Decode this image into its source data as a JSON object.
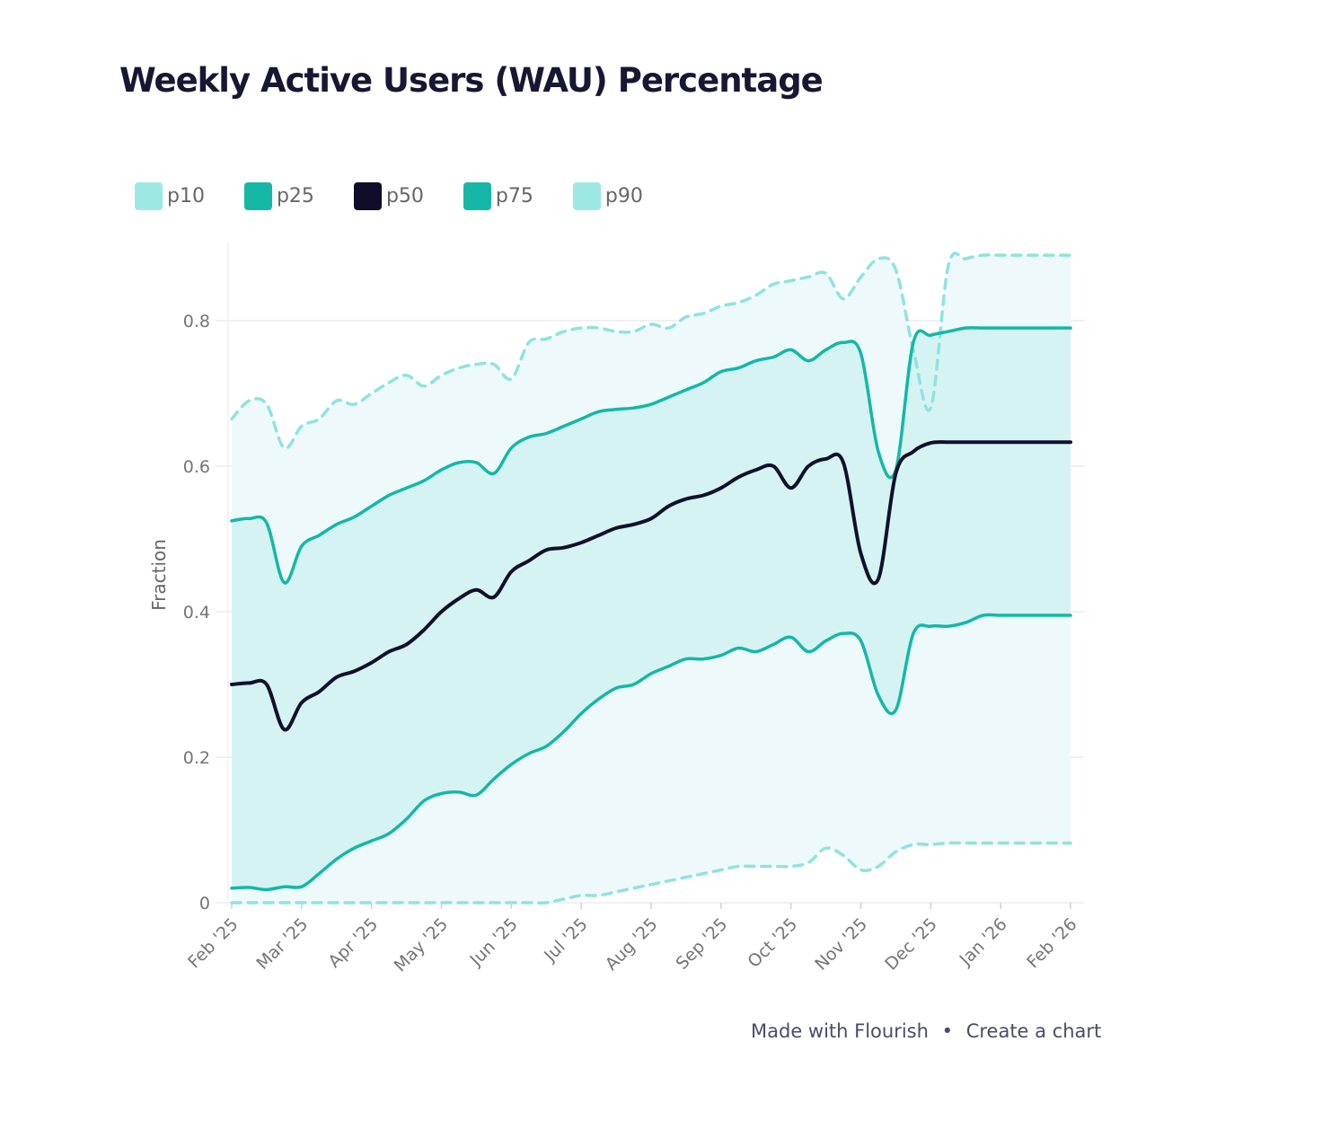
{
  "title": "Weekly Active Users (WAU) Percentage",
  "legend": [
    {
      "label": "p10",
      "color": "#9ee8e4"
    },
    {
      "label": "p25",
      "color": "#15b8a6"
    },
    {
      "label": "p50",
      "color": "#0e0e2a"
    },
    {
      "label": "p75",
      "color": "#15b8a6"
    },
    {
      "label": "p90",
      "color": "#9ee8e4"
    }
  ],
  "footer": {
    "made_with": "Made with Flourish",
    "separator": "•",
    "create": "Create a chart"
  },
  "chart_data": {
    "type": "line",
    "title": "Weekly Active Users (WAU) Percentage",
    "xlabel": "",
    "ylabel": "Fraction",
    "ylim": [
      0,
      0.9
    ],
    "yticks": [
      0,
      0.2,
      0.4,
      0.6,
      0.8
    ],
    "ytick_labels": [
      "0",
      "0.2",
      "0.4",
      "0.6",
      "0.8"
    ],
    "x_range_months": [
      0,
      12
    ],
    "xtick_labels": [
      "Feb '25",
      "Mar '25",
      "Apr '25",
      "May '25",
      "Jun '25",
      "Jul '25",
      "Aug '25",
      "Sep '25",
      "Oct '25",
      "Nov '25",
      "Dec '25",
      "Jan '26",
      "Feb '26"
    ],
    "x": [
      0,
      0.25,
      0.5,
      0.75,
      1.0,
      1.25,
      1.5,
      1.75,
      2.0,
      2.25,
      2.5,
      2.75,
      3.0,
      3.25,
      3.5,
      3.75,
      4.0,
      4.25,
      4.5,
      4.75,
      5.0,
      5.25,
      5.5,
      5.75,
      6.0,
      6.25,
      6.5,
      6.75,
      7.0,
      7.25,
      7.5,
      7.75,
      8.0,
      8.25,
      8.5,
      8.75,
      9.0,
      9.25,
      9.5,
      9.75,
      10.0,
      10.25,
      10.5,
      10.75,
      11.0,
      11.25,
      11.5,
      11.75,
      12.0
    ],
    "series": [
      {
        "name": "p90",
        "style": "dashed",
        "values": [
          0.665,
          0.69,
          0.685,
          0.625,
          0.655,
          0.665,
          0.69,
          0.685,
          0.7,
          0.715,
          0.725,
          0.71,
          0.725,
          0.735,
          0.74,
          0.74,
          0.72,
          0.77,
          0.775,
          0.785,
          0.79,
          0.79,
          0.785,
          0.785,
          0.795,
          0.79,
          0.805,
          0.81,
          0.82,
          0.825,
          0.835,
          0.85,
          0.855,
          0.86,
          0.865,
          0.83,
          0.86,
          0.885,
          0.87,
          0.76,
          0.68,
          0.875,
          0.885,
          0.89,
          0.89,
          0.89,
          0.89,
          0.89,
          0.89
        ]
      },
      {
        "name": "p75",
        "style": "solid",
        "values": [
          0.525,
          0.528,
          0.522,
          0.44,
          0.49,
          0.505,
          0.52,
          0.53,
          0.545,
          0.56,
          0.57,
          0.58,
          0.595,
          0.605,
          0.605,
          0.59,
          0.625,
          0.64,
          0.645,
          0.655,
          0.665,
          0.675,
          0.678,
          0.68,
          0.685,
          0.695,
          0.705,
          0.715,
          0.73,
          0.735,
          0.745,
          0.75,
          0.76,
          0.745,
          0.76,
          0.77,
          0.755,
          0.62,
          0.595,
          0.77,
          0.78,
          0.785,
          0.79,
          0.79,
          0.79,
          0.79,
          0.79,
          0.79,
          0.79
        ]
      },
      {
        "name": "p50",
        "style": "solid",
        "values": [
          0.3,
          0.302,
          0.3,
          0.238,
          0.275,
          0.29,
          0.31,
          0.318,
          0.33,
          0.345,
          0.355,
          0.375,
          0.4,
          0.418,
          0.43,
          0.42,
          0.455,
          0.47,
          0.485,
          0.488,
          0.495,
          0.505,
          0.515,
          0.52,
          0.528,
          0.545,
          0.555,
          0.56,
          0.57,
          0.585,
          0.595,
          0.6,
          0.57,
          0.6,
          0.61,
          0.605,
          0.48,
          0.445,
          0.59,
          0.62,
          0.632,
          0.633,
          0.633,
          0.633,
          0.633,
          0.633,
          0.633,
          0.633,
          0.633
        ]
      },
      {
        "name": "p25",
        "style": "solid",
        "values": [
          0.02,
          0.021,
          0.018,
          0.022,
          0.022,
          0.04,
          0.06,
          0.075,
          0.085,
          0.095,
          0.115,
          0.14,
          0.15,
          0.152,
          0.148,
          0.17,
          0.19,
          0.205,
          0.215,
          0.235,
          0.26,
          0.28,
          0.295,
          0.3,
          0.315,
          0.325,
          0.335,
          0.335,
          0.34,
          0.35,
          0.345,
          0.355,
          0.365,
          0.345,
          0.36,
          0.37,
          0.36,
          0.285,
          0.265,
          0.37,
          0.38,
          0.38,
          0.385,
          0.395,
          0.395,
          0.395,
          0.395,
          0.395,
          0.395
        ]
      },
      {
        "name": "p10",
        "style": "dashed",
        "values": [
          0,
          0,
          0,
          0,
          0,
          0,
          0,
          0,
          0,
          0,
          0,
          0,
          0,
          0,
          0,
          0,
          0,
          0,
          0,
          0.005,
          0.01,
          0.01,
          0.015,
          0.02,
          0.025,
          0.03,
          0.035,
          0.04,
          0.045,
          0.05,
          0.05,
          0.05,
          0.05,
          0.055,
          0.075,
          0.065,
          0.045,
          0.05,
          0.07,
          0.08,
          0.08,
          0.082,
          0.082,
          0.082,
          0.082,
          0.082,
          0.082,
          0.082,
          0.082
        ]
      }
    ]
  }
}
